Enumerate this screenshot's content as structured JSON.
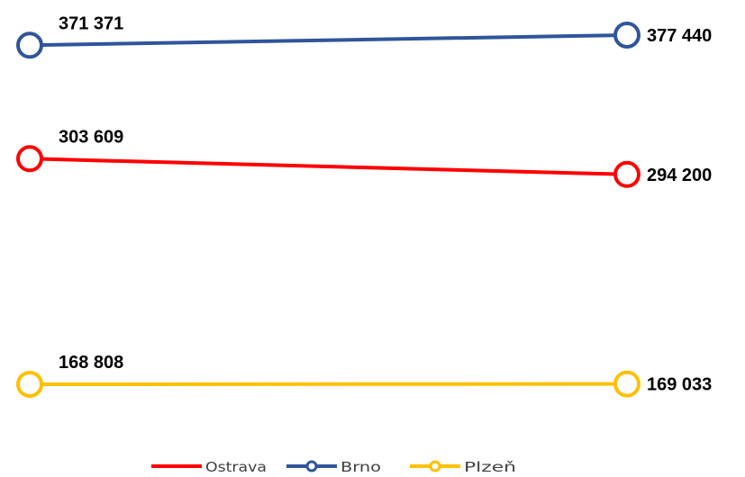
{
  "chart_data": {
    "type": "line",
    "x": [
      0,
      1
    ],
    "series": [
      {
        "name": "Ostrava",
        "values": [
          303609,
          294200
        ],
        "labels": [
          "303 609",
          "294 200"
        ],
        "color": "#ff0000"
      },
      {
        "name": "Brno",
        "values": [
          371371,
          377440
        ],
        "labels": [
          "371 371",
          "377 440"
        ],
        "color": "#2f559a"
      },
      {
        "name": "Plzeň",
        "values": [
          168808,
          169033
        ],
        "labels": [
          "168 808",
          "169 033"
        ],
        "color": "#ffc000"
      }
    ],
    "title": "",
    "xlabel": "",
    "ylabel": "",
    "legend": "bottom",
    "grid": false
  }
}
